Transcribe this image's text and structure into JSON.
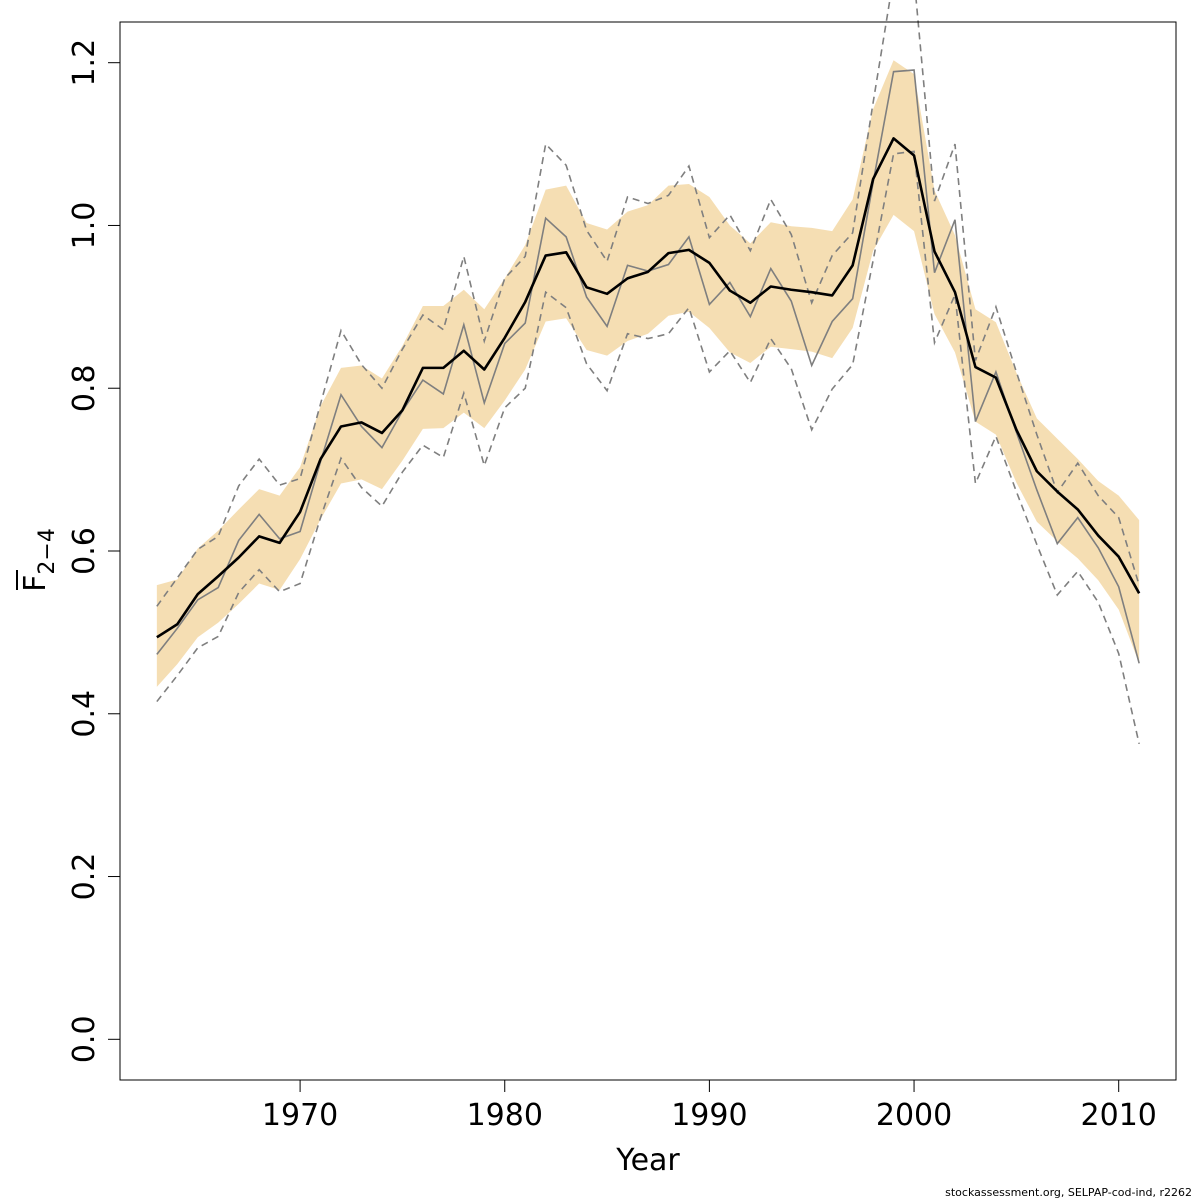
{
  "chart_data": {
    "type": "line",
    "xlabel": "Year",
    "ylabel_main": "F",
    "ylabel_sub": "2−4",
    "xlim": [
      1961.2,
      2012.8
    ],
    "ylim": [
      -0.05,
      1.25
    ],
    "xticks": [
      "1970",
      "1980",
      "1990",
      "2000",
      "2010"
    ],
    "yticks": [
      "0.0",
      "0.2",
      "0.4",
      "0.6",
      "0.8",
      "1.0",
      "1.2"
    ],
    "credit": "stockassessment.org, SELPAP-cod-ind, r2262",
    "colors": {
      "band": "#f5deb3",
      "estimate": "#000000",
      "retro": "#7f7f7f"
    },
    "x": [
      1963,
      1964,
      1965,
      1966,
      1967,
      1968,
      1969,
      1970,
      1971,
      1972,
      1973,
      1974,
      1975,
      1976,
      1977,
      1978,
      1979,
      1980,
      1981,
      1982,
      1983,
      1984,
      1985,
      1986,
      1987,
      1988,
      1989,
      1990,
      1991,
      1992,
      1993,
      1994,
      1995,
      1996,
      1997,
      1998,
      1999,
      2000,
      2001,
      2002,
      2003,
      2004,
      2005,
      2006,
      2007,
      2008,
      2009,
      2010,
      2011
    ],
    "series": [
      {
        "role": "confidence-band",
        "upper": [
          0.558,
          0.565,
          0.603,
          0.625,
          0.651,
          0.676,
          0.668,
          0.703,
          0.778,
          0.825,
          0.828,
          0.812,
          0.852,
          0.901,
          0.901,
          0.921,
          0.897,
          0.935,
          0.976,
          1.044,
          1.049,
          1.003,
          0.995,
          1.017,
          1.025,
          1.049,
          1.051,
          1.035,
          1.0,
          0.978,
          1.004,
          0.999,
          0.997,
          0.993,
          1.032,
          1.143,
          1.203,
          1.186,
          1.043,
          0.988,
          0.897,
          0.881,
          0.819,
          0.763,
          0.738,
          0.713,
          0.686,
          0.668,
          0.638
        ],
        "lower": [
          0.433,
          0.461,
          0.494,
          0.512,
          0.535,
          0.56,
          0.552,
          0.59,
          0.639,
          0.683,
          0.688,
          0.676,
          0.711,
          0.75,
          0.751,
          0.77,
          0.751,
          0.785,
          0.823,
          0.882,
          0.886,
          0.847,
          0.84,
          0.858,
          0.867,
          0.889,
          0.894,
          0.874,
          0.844,
          0.831,
          0.851,
          0.848,
          0.845,
          0.837,
          0.874,
          0.969,
          1.013,
          0.993,
          0.891,
          0.844,
          0.759,
          0.743,
          0.684,
          0.636,
          0.612,
          0.591,
          0.564,
          0.528,
          0.462
        ]
      },
      {
        "role": "estimate",
        "values": [
          0.494,
          0.51,
          0.547,
          0.569,
          0.592,
          0.618,
          0.61,
          0.648,
          0.713,
          0.753,
          0.758,
          0.745,
          0.773,
          0.825,
          0.825,
          0.846,
          0.823,
          0.862,
          0.906,
          0.963,
          0.967,
          0.924,
          0.916,
          0.935,
          0.943,
          0.966,
          0.97,
          0.954,
          0.92,
          0.905,
          0.925,
          0.921,
          0.918,
          0.914,
          0.951,
          1.057,
          1.107,
          1.086,
          0.968,
          0.918,
          0.826,
          0.813,
          0.749,
          0.698,
          0.673,
          0.651,
          0.619,
          0.593,
          0.548
        ]
      },
      {
        "role": "retrospective",
        "values": [
          0.473,
          0.505,
          0.54,
          0.555,
          0.613,
          0.645,
          0.615,
          0.624,
          0.71,
          0.792,
          0.753,
          0.727,
          0.772,
          0.81,
          0.793,
          0.878,
          0.782,
          0.855,
          0.88,
          1.009,
          0.986,
          0.912,
          0.876,
          0.951,
          0.944,
          0.952,
          0.986,
          0.903,
          0.93,
          0.888,
          0.947,
          0.907,
          0.828,
          0.882,
          0.91,
          1.053,
          1.189,
          1.191,
          0.942,
          1.007,
          0.759,
          0.82,
          0.746,
          0.675,
          0.609,
          0.641,
          0.604,
          0.556,
          0.462
        ]
      },
      {
        "role": "retro-upper",
        "values": [
          0.532,
          0.567,
          0.602,
          0.618,
          0.68,
          0.713,
          0.681,
          0.689,
          0.781,
          0.871,
          0.829,
          0.8,
          0.848,
          0.89,
          0.872,
          0.962,
          0.858,
          0.935,
          0.962,
          1.1,
          1.074,
          0.994,
          0.956,
          1.035,
          1.027,
          1.037,
          1.073,
          0.985,
          1.013,
          0.969,
          1.032,
          0.989,
          0.905,
          0.963,
          0.991,
          1.151,
          1.305,
          1.305,
          1.03,
          1.1,
          0.834,
          0.9,
          0.82,
          0.743,
          0.672,
          0.708,
          0.668,
          0.641,
          0.558
        ]
      },
      {
        "role": "retro-lower",
        "values": [
          0.415,
          0.447,
          0.481,
          0.495,
          0.549,
          0.577,
          0.55,
          0.56,
          0.641,
          0.714,
          0.678,
          0.655,
          0.697,
          0.73,
          0.715,
          0.794,
          0.705,
          0.776,
          0.8,
          0.918,
          0.899,
          0.83,
          0.797,
          0.867,
          0.861,
          0.867,
          0.899,
          0.82,
          0.846,
          0.807,
          0.861,
          0.824,
          0.749,
          0.799,
          0.829,
          0.957,
          1.088,
          1.091,
          0.856,
          0.915,
          0.683,
          0.741,
          0.673,
          0.608,
          0.546,
          0.575,
          0.537,
          0.474,
          0.363
        ]
      }
    ]
  }
}
